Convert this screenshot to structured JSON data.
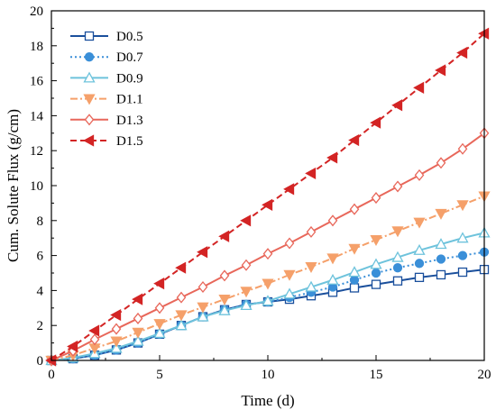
{
  "chart_data": {
    "type": "line",
    "xlabel": "Time (d)",
    "ylabel": "Cum. Solute Flux (g/cm)",
    "xlim": [
      0,
      20
    ],
    "ylim": [
      0,
      20
    ],
    "xticks": [
      "0",
      "5",
      "10",
      "15",
      "20"
    ],
    "yticks": [
      "0",
      "2",
      "4",
      "6",
      "8",
      "10",
      "12",
      "14",
      "16",
      "18",
      "20"
    ],
    "grid": false,
    "legend_position": "top-left",
    "x": [
      0,
      1,
      2,
      3,
      4,
      5,
      6,
      7,
      8,
      9,
      10,
      11,
      12,
      13,
      14,
      15,
      16,
      17,
      18,
      19,
      20
    ],
    "series": [
      {
        "name": "D0.5",
        "color": "#1a4f9c",
        "line": "solid",
        "marker": "square-open",
        "values": [
          0,
          0.1,
          0.3,
          0.6,
          1.0,
          1.5,
          2.0,
          2.5,
          2.9,
          3.2,
          3.35,
          3.5,
          3.7,
          3.9,
          4.15,
          4.35,
          4.55,
          4.75,
          4.9,
          5.05,
          5.2
        ]
      },
      {
        "name": "D0.7",
        "color": "#3a8fd8",
        "line": "dotted",
        "marker": "circle-filled",
        "values": [
          0,
          0.1,
          0.3,
          0.6,
          1.0,
          1.5,
          2.0,
          2.5,
          2.9,
          3.2,
          3.35,
          3.6,
          3.9,
          4.2,
          4.6,
          5.0,
          5.3,
          5.55,
          5.8,
          6.0,
          6.2
        ]
      },
      {
        "name": "D0.9",
        "color": "#6ec3dc",
        "line": "solid",
        "marker": "triangle-up-open",
        "values": [
          0,
          0.15,
          0.4,
          0.7,
          1.1,
          1.55,
          2.0,
          2.5,
          2.85,
          3.15,
          3.4,
          3.8,
          4.2,
          4.6,
          5.05,
          5.5,
          5.9,
          6.3,
          6.65,
          7.0,
          7.3
        ]
      },
      {
        "name": "D1.1",
        "color": "#f5a06a",
        "line": "dashdot",
        "marker": "triangle-down-filled",
        "values": [
          0,
          0.3,
          0.7,
          1.1,
          1.6,
          2.1,
          2.6,
          3.05,
          3.5,
          3.95,
          4.4,
          4.9,
          5.35,
          5.85,
          6.4,
          6.9,
          7.4,
          7.9,
          8.4,
          8.9,
          9.4
        ]
      },
      {
        "name": "D1.3",
        "color": "#e8675a",
        "line": "solid",
        "marker": "diamond-open",
        "values": [
          0,
          0.55,
          1.2,
          1.8,
          2.4,
          3.0,
          3.6,
          4.2,
          4.85,
          5.45,
          6.1,
          6.7,
          7.35,
          8.0,
          8.65,
          9.3,
          9.95,
          10.6,
          11.3,
          12.1,
          13.0
        ]
      },
      {
        "name": "D1.5",
        "color": "#d32424",
        "line": "dashed",
        "marker": "triangle-left-filled",
        "values": [
          0,
          0.8,
          1.7,
          2.6,
          3.5,
          4.4,
          5.3,
          6.2,
          7.1,
          8.0,
          8.9,
          9.8,
          10.7,
          11.6,
          12.6,
          13.6,
          14.6,
          15.6,
          16.6,
          17.6,
          18.7
        ]
      }
    ]
  }
}
